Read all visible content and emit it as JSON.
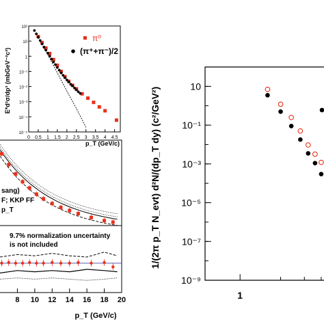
{
  "chart_data": [
    {
      "type": "scatter",
      "panel": "inset",
      "title": "",
      "xlabel": "p_T (GeV/c)",
      "ylabel": "E*d³σ/dp³ (mbGeV⁻²c³)",
      "xlim": [
        0,
        4.8
      ],
      "ylim_log10": [
        -5,
        2
      ],
      "y_log": true,
      "xticks": [
        "0",
        "0.5",
        "1",
        "1.5",
        "2",
        "2.5",
        "3",
        "3.5",
        "4",
        "4.5"
      ],
      "yticks": [
        "10²",
        "10",
        "1",
        "10⁻¹",
        "10⁻²",
        "10⁻³",
        "10⁻⁴",
        "10⁻⁵"
      ],
      "legend_position": "top-right",
      "series": [
        {
          "name": "π⁰",
          "marker": "square",
          "color": "#e8301c",
          "x": [
            0.5,
            0.7,
            0.9,
            1.1,
            1.3,
            1.5,
            1.7,
            1.9,
            2.1,
            2.3,
            2.5,
            2.8,
            3.1,
            3.4,
            3.7,
            4.0,
            4.6
          ],
          "y": [
            20,
            8,
            3.5,
            1.5,
            0.6,
            0.25,
            0.1,
            0.045,
            0.022,
            0.012,
            0.007,
            0.0033,
            0.0017,
            0.0009,
            0.00045,
            0.00025,
            6e-05
          ]
        },
        {
          "name": "(π⁺+π⁻)/2",
          "marker": "circle",
          "color": "#000000",
          "x": [
            0.3,
            0.4,
            0.5,
            0.6,
            0.7,
            0.8,
            0.9,
            1.0,
            1.1,
            1.2,
            1.3,
            1.4,
            1.5,
            1.6,
            1.7,
            1.8,
            1.9,
            2.0,
            2.1,
            2.2,
            2.3,
            2.4,
            2.5,
            2.6,
            2.7
          ],
          "y": [
            50,
            30,
            18,
            11,
            6.5,
            4,
            2.5,
            1.6,
            1.0,
            0.65,
            0.42,
            0.28,
            0.18,
            0.12,
            0.08,
            0.055,
            0.038,
            0.027,
            0.02,
            0.014,
            0.011,
            0.008,
            0.006,
            0.0045,
            0.0035
          ]
        },
        {
          "name": "",
          "style": "dashed line",
          "x": [
            0.5,
            1.0,
            1.5,
            2.0,
            2.5,
            3.0
          ],
          "y": [
            17,
            1.3,
            0.08,
            0.005,
            0.00035,
            2e-05
          ]
        }
      ]
    },
    {
      "type": "line",
      "panel": "left-main",
      "xlabel": "p_T (GeV/c)",
      "xlim": [
        6,
        20
      ],
      "xticks": [
        "8",
        "10",
        "12",
        "14",
        "16",
        "18",
        "20"
      ],
      "legend_lines": [
        "sang)",
        "F; KKP FF",
        "p_T"
      ],
      "series": [
        {
          "name": "",
          "marker": "square",
          "color": "#e8301c",
          "x": [
            6.2,
            7.0,
            7.8,
            8.6,
            9.4,
            10.2,
            11.0,
            12.0,
            13.0,
            14.0,
            15.0,
            16.5,
            18.0,
            19.0
          ],
          "y": [
            1.0,
            0.86,
            0.74,
            0.64,
            0.56,
            0.48,
            0.42,
            0.36,
            0.31,
            0.27,
            0.23,
            0.18,
            0.14,
            0.12
          ]
        }
      ]
    },
    {
      "type": "line",
      "panel": "left-ratio",
      "annotation": [
        "9.7% normalization uncertainty",
        "is not included"
      ],
      "xlim": [
        6,
        20
      ],
      "series": [
        {
          "name": "",
          "marker": "circle",
          "color": "#e8301c",
          "x": [
            6.2,
            7.0,
            7.8,
            8.6,
            9.4,
            10.2,
            11.0,
            12.0,
            13.0,
            14.0,
            15.0,
            16.5,
            18.0,
            19.0
          ],
          "y": [
            0.0,
            0.05,
            0.0,
            0.0,
            0.05,
            0.0,
            0.0,
            0.05,
            0.0,
            0.0,
            0.05,
            0.0,
            0.05,
            -0.3
          ]
        }
      ]
    },
    {
      "type": "scatter",
      "panel": "right",
      "ylabel": "1/(2π p_T N_evt) d²N/(dp_T dy) (c²/GeV²)",
      "y_log": true,
      "ylim_log10": [
        -9,
        2
      ],
      "xlim": [
        0.55,
        4.5
      ],
      "x_log": true,
      "xticks": [
        "1"
      ],
      "yticks": [
        "10",
        "10⁻¹",
        "10⁻³",
        "10⁻⁵",
        "10⁻⁷",
        "10⁻⁹"
      ],
      "series": [
        {
          "name": "",
          "marker": "open circle",
          "color": "#e8301c",
          "x": [
            1.6,
            2.0,
            2.4,
            2.8,
            3.2,
            3.6,
            4.0
          ],
          "y": [
            7,
            1.2,
            0.25,
            0.05,
            0.0095,
            0.0032,
            0.0012
          ]
        },
        {
          "name": "",
          "marker": "filled circle",
          "color": "#000000",
          "x": [
            1.6,
            2.0,
            2.4,
            2.8,
            3.2,
            3.6,
            4.0,
            4.05
          ],
          "y": [
            3.5,
            0.5,
            0.09,
            0.018,
            0.0035,
            0.0011,
            0.0003,
            0.6
          ]
        }
      ]
    }
  ]
}
